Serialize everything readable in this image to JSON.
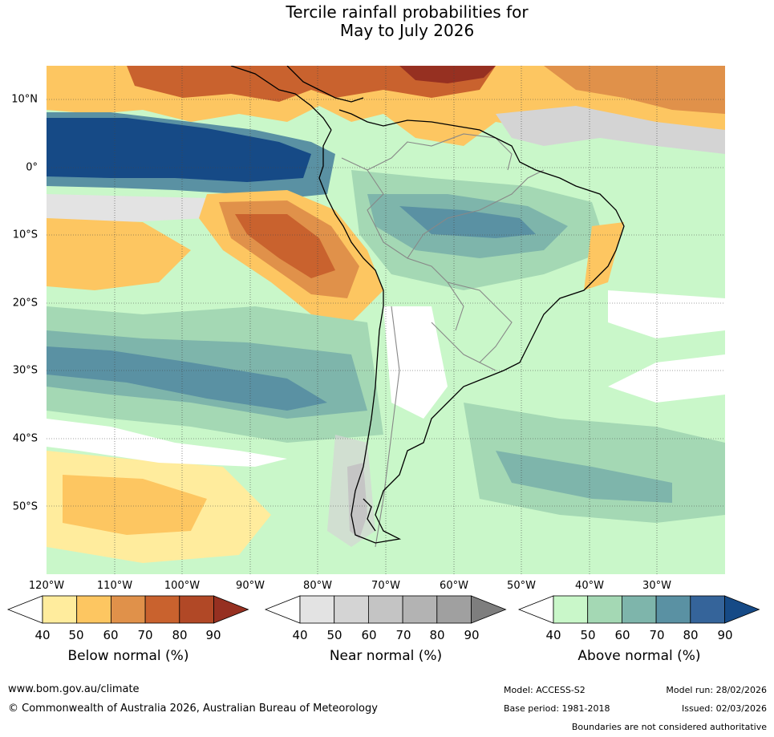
{
  "title": {
    "line1": "Tercile rainfall probabilities for",
    "line2": "May to July 2026"
  },
  "map": {
    "lat_labels": [
      "10°N",
      "0°",
      "10°S",
      "20°S",
      "30°S",
      "40°S",
      "50°S"
    ],
    "lon_labels": [
      "120°W",
      "110°W",
      "100°W",
      "90°W",
      "80°W",
      "70°W",
      "60°W",
      "50°W",
      "40°W",
      "30°W"
    ],
    "lat_range": [
      -60,
      15
    ],
    "lon_range": [
      -120,
      -20
    ]
  },
  "colorbars": [
    {
      "title": "Below normal (%)",
      "ticks": [
        "40",
        "50",
        "60",
        "70",
        "80",
        "90"
      ],
      "colors": [
        "#ffffff",
        "#ffec9d",
        "#fdc661",
        "#e0914a",
        "#c9622e",
        "#b14826",
        "#963021"
      ]
    },
    {
      "title": "Near normal (%)",
      "ticks": [
        "40",
        "50",
        "60",
        "70",
        "80",
        "90"
      ],
      "colors": [
        "#ffffff",
        "#e3e3e3",
        "#d4d4d4",
        "#c4c4c4",
        "#b3b3b3",
        "#a0a0a0",
        "#7e7e7e"
      ]
    },
    {
      "title": "Above normal (%)",
      "ticks": [
        "40",
        "50",
        "60",
        "70",
        "80",
        "90"
      ],
      "colors": [
        "#ffffff",
        "#c9f7c9",
        "#a4d8b4",
        "#7eb5ab",
        "#5a91a3",
        "#35649a",
        "#164a86"
      ]
    }
  ],
  "footer": {
    "url": "www.bom.gov.au/climate",
    "copyright": "© Commonwealth of Australia 2026, Australian Bureau of Meteorology",
    "model": "Model: ACCESS-S2",
    "model_run": "Model run: 28/02/2026",
    "base_period": "Base period: 1981-2018",
    "issued": "Issued: 02/03/2026",
    "disclaimer": "Boundaries are not considered authoritative"
  }
}
